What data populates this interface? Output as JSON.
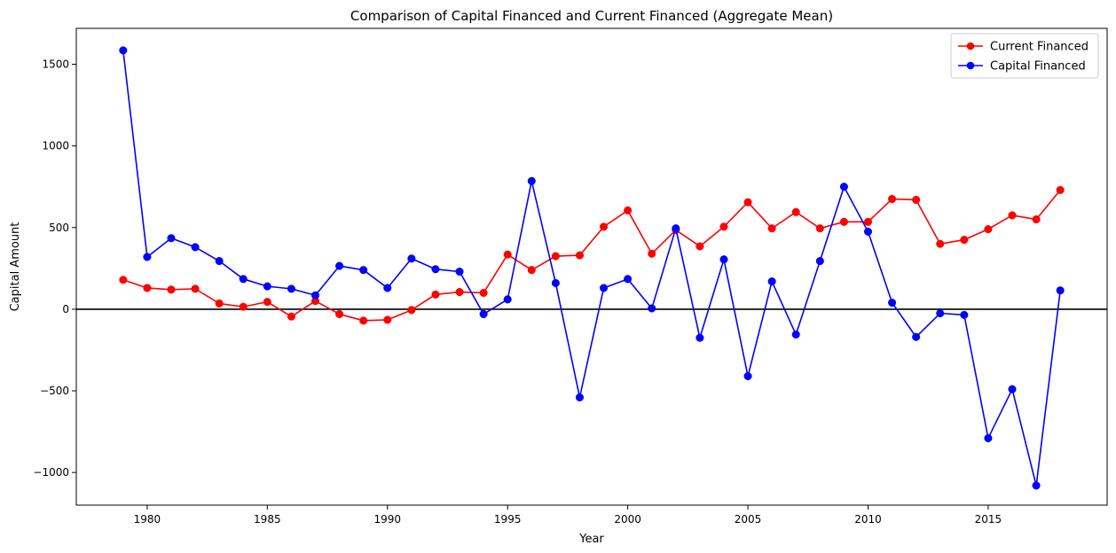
{
  "chart_data": {
    "type": "line",
    "title": "Comparison of Capital Financed and Current Financed (Aggregate Mean)",
    "xlabel": "Year",
    "ylabel": "Capital Amount",
    "xlim": [
      1977.05,
      2019.95
    ],
    "ylim": [
      -1200,
      1720
    ],
    "x_ticks": [
      1980,
      1985,
      1990,
      1995,
      2000,
      2005,
      2010,
      2015
    ],
    "y_ticks": [
      -1000,
      -500,
      0,
      500,
      1000,
      1500
    ],
    "y_tick_labels": [
      "−1000",
      "−500",
      "0",
      "500",
      "1000",
      "1500"
    ],
    "reference_line": 0,
    "grid": false,
    "legend_position": "top-right",
    "x": [
      1979,
      1980,
      1981,
      1982,
      1983,
      1984,
      1985,
      1986,
      1987,
      1988,
      1989,
      1990,
      1991,
      1992,
      1993,
      1994,
      1995,
      1996,
      1997,
      1998,
      1999,
      2000,
      2001,
      2002,
      2003,
      2004,
      2005,
      2006,
      2007,
      2008,
      2009,
      2010,
      2011,
      2012,
      2013,
      2014,
      2015,
      2016,
      2017,
      2018
    ],
    "series": [
      {
        "name": "Current Financed",
        "color": "#ff0000",
        "values": [
          180,
          130,
          120,
          125,
          35,
          15,
          45,
          -45,
          50,
          -30,
          -70,
          -65,
          -5,
          90,
          105,
          100,
          335,
          240,
          325,
          330,
          505,
          605,
          340,
          485,
          385,
          505,
          655,
          495,
          595,
          495,
          535,
          535,
          675,
          670,
          400,
          425,
          490,
          575,
          550,
          730
        ]
      },
      {
        "name": "Capital Financed",
        "color": "#0000ff",
        "values": [
          1585,
          320,
          435,
          380,
          295,
          185,
          140,
          125,
          85,
          265,
          240,
          130,
          310,
          245,
          230,
          -30,
          60,
          785,
          160,
          -540,
          130,
          185,
          5,
          495,
          -175,
          305,
          -410,
          170,
          -155,
          295,
          750,
          475,
          40,
          -170,
          -25,
          -35,
          -790,
          -490,
          -1080,
          115
        ]
      }
    ]
  }
}
